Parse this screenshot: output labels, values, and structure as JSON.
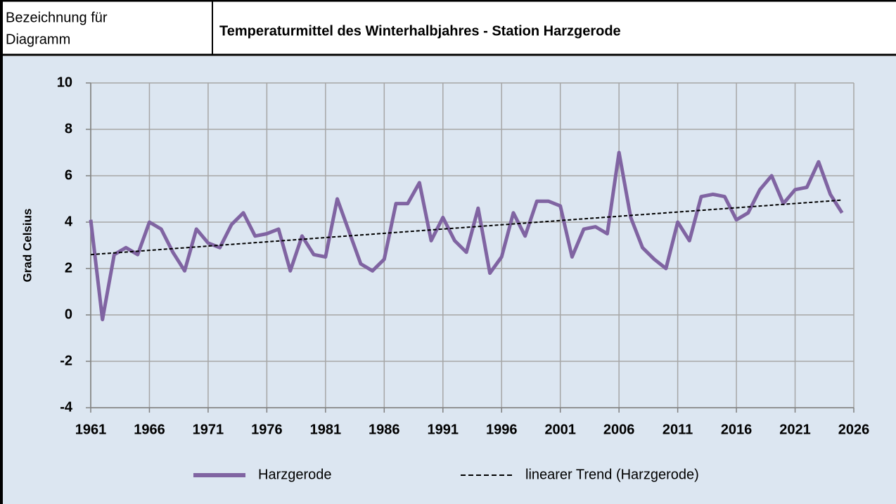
{
  "header": {
    "label": [
      "Bezeichnung für",
      "Diagramm"
    ]
  },
  "chart_data": {
    "type": "line",
    "title": "Temperaturmittel des Winterhalbjahres - Station Harzgerode",
    "ylabel": "Grad Celsius",
    "x": [
      1961,
      1962,
      1963,
      1964,
      1965,
      1966,
      1967,
      1968,
      1969,
      1970,
      1971,
      1972,
      1973,
      1974,
      1975,
      1976,
      1977,
      1978,
      1979,
      1980,
      1981,
      1982,
      1983,
      1984,
      1985,
      1986,
      1987,
      1988,
      1989,
      1990,
      1991,
      1992,
      1993,
      1994,
      1995,
      1996,
      1997,
      1998,
      1999,
      2000,
      2001,
      2002,
      2003,
      2004,
      2005,
      2006,
      2007,
      2008,
      2009,
      2010,
      2011,
      2012,
      2013,
      2014,
      2015,
      2016,
      2017,
      2018,
      2019,
      2020,
      2021,
      2022,
      2023,
      2024,
      2025
    ],
    "series": [
      {
        "name": "Harzgerode",
        "color": "#8064a2",
        "values": [
          4.1,
          -0.2,
          2.6,
          2.9,
          2.6,
          4.0,
          3.7,
          2.7,
          1.9,
          3.7,
          3.1,
          2.9,
          3.9,
          4.4,
          3.4,
          3.5,
          3.7,
          1.9,
          3.4,
          2.6,
          2.5,
          5.0,
          3.6,
          2.2,
          1.9,
          2.4,
          4.8,
          4.8,
          5.7,
          3.2,
          4.2,
          3.2,
          2.7,
          4.6,
          1.8,
          2.5,
          4.4,
          3.4,
          4.9,
          4.9,
          4.7,
          2.5,
          3.7,
          3.8,
          3.5,
          7.0,
          4.2,
          2.9,
          2.4,
          2.0,
          4.0,
          3.2,
          5.1,
          5.2,
          5.1,
          4.1,
          4.4,
          5.4,
          6.0,
          4.8,
          5.4,
          5.5,
          6.6,
          5.2,
          4.4
        ]
      },
      {
        "name": "linearer Trend (Harzgerode)",
        "color": "#000000",
        "dashed": true,
        "x": [
          1961,
          2025
        ],
        "values": [
          2.6,
          4.95
        ]
      }
    ],
    "xlim": [
      1961,
      2026
    ],
    "xticks": [
      1961,
      1966,
      1971,
      1976,
      1981,
      1986,
      1991,
      1996,
      2001,
      2006,
      2011,
      2016,
      2021,
      2026
    ],
    "ylim": [
      -4,
      10
    ],
    "yticks": [
      -4,
      -2,
      0,
      2,
      4,
      6,
      8,
      10
    ],
    "grid": true,
    "legend": "bottom"
  }
}
